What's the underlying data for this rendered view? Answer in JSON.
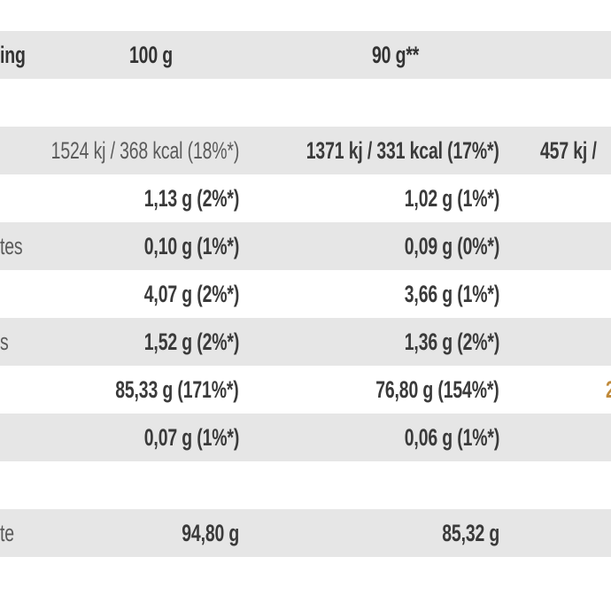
{
  "header": {
    "label": "ing",
    "col_100g": "100 g",
    "col_90g": "90 g**"
  },
  "rows": [
    {
      "label": "",
      "v100": "1524 kj / 368 kcal (18%*)",
      "v90": "1371 kj / 331 kcal (17%*)",
      "v3": "457 kj /"
    },
    {
      "label": "",
      "v100": "1,13 g (2%*)",
      "v90": "1,02 g (1%*)",
      "v3": ""
    },
    {
      "label": "tes",
      "v100": "0,10 g (1%*)",
      "v90": "0,09 g (0%*)",
      "v3": ""
    },
    {
      "label": "",
      "v100": "4,07 g (2%*)",
      "v90": "3,66 g (1%*)",
      "v3": ""
    },
    {
      "label": "s",
      "v100": "1,52 g (2%*)",
      "v90": "1,36 g (2%*)",
      "v3": ""
    },
    {
      "label": "",
      "v100": "85,33 g (171%*)",
      "v90": "76,80 g (154%*)",
      "v3": "2"
    },
    {
      "label": "",
      "v100": "0,07 g (1%*)",
      "v90": "0,06 g (1%*)",
      "v3": ""
    },
    {
      "label": "te",
      "v100": "94,80 g",
      "v90": "85,32 g",
      "v3": ""
    }
  ]
}
